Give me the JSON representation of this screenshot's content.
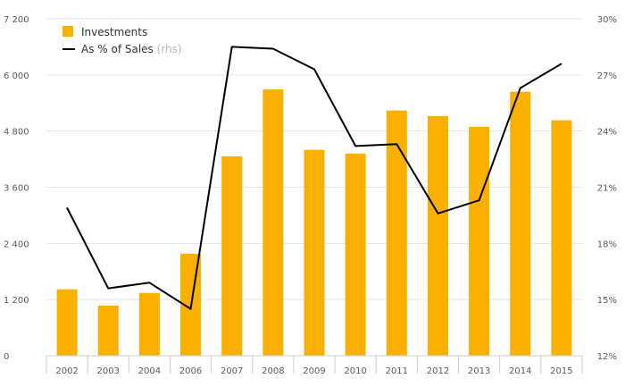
{
  "chart_data": {
    "type": "bar",
    "title": "",
    "xlabel": "",
    "ylabel": "",
    "categories": [
      "2002",
      "2003",
      "2004",
      "2006",
      "2007",
      "2008",
      "2009",
      "2010",
      "2011",
      "2012",
      "2013",
      "2014",
      "2015"
    ],
    "series": [
      {
        "name": "Investments",
        "type": "bar",
        "axis": "left",
        "color": "#f9b000",
        "values": [
          1420,
          1070,
          1340,
          2180,
          4260,
          5690,
          4400,
          4320,
          5240,
          5120,
          4890,
          5640,
          5030
        ]
      },
      {
        "name": "As % of Sales",
        "type": "line",
        "axis": "right",
        "color": "#000000",
        "values": [
          19.9,
          15.6,
          15.9,
          14.5,
          28.5,
          28.4,
          27.3,
          23.2,
          23.3,
          19.6,
          20.3,
          26.3,
          27.6
        ]
      }
    ],
    "ylim_left": [
      0,
      7200
    ],
    "yticks_left": [
      0,
      1200,
      2400,
      3600,
      4800,
      6000,
      7200
    ],
    "ytick_labels_left": [
      "0",
      "1 200",
      "2 400",
      "3 600",
      "4 800",
      "6 000",
      "7 200"
    ],
    "ylim_right": [
      12,
      30
    ],
    "yticks_right": [
      12,
      15,
      18,
      21,
      24,
      27,
      30
    ],
    "ytick_labels_right": [
      "12%",
      "15%",
      "18%",
      "21%",
      "24%",
      "27%",
      "30%"
    ],
    "grid": true,
    "legend": {
      "position": "top-left",
      "entries": [
        {
          "label": "Investments",
          "note": ""
        },
        {
          "label": "As % of Sales",
          "note": "(rhs)"
        }
      ]
    }
  },
  "colors": {
    "bar": "#f9b000",
    "line": "#000000",
    "grid": "#e6e6e6",
    "axis": "#cfcfcf"
  }
}
